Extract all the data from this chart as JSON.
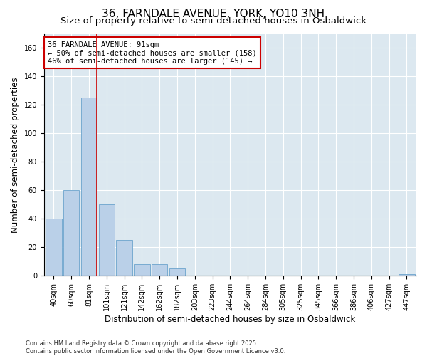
{
  "title": "36, FARNDALE AVENUE, YORK, YO10 3NH",
  "subtitle": "Size of property relative to semi-detached houses in Osbaldwick",
  "xlabel": "Distribution of semi-detached houses by size in Osbaldwick",
  "ylabel": "Number of semi-detached properties",
  "categories": [
    "40sqm",
    "60sqm",
    "81sqm",
    "101sqm",
    "121sqm",
    "142sqm",
    "162sqm",
    "182sqm",
    "203sqm",
    "223sqm",
    "244sqm",
    "264sqm",
    "284sqm",
    "305sqm",
    "325sqm",
    "345sqm",
    "366sqm",
    "386sqm",
    "406sqm",
    "427sqm",
    "447sqm"
  ],
  "values": [
    40,
    60,
    125,
    50,
    25,
    8,
    8,
    5,
    0,
    0,
    0,
    0,
    0,
    0,
    0,
    0,
    0,
    0,
    0,
    0,
    1
  ],
  "bar_color": "#bad0e8",
  "bar_edge_color": "#6ba3cc",
  "vline_color": "#cc0000",
  "annotation_text": "36 FARNDALE AVENUE: 91sqm\n← 50% of semi-detached houses are smaller (158)\n46% of semi-detached houses are larger (145) →",
  "annotation_box_color": "#ffffff",
  "annotation_box_edge_color": "#cc0000",
  "ylim": [
    0,
    170
  ],
  "yticks": [
    0,
    20,
    40,
    60,
    80,
    100,
    120,
    140,
    160
  ],
  "background_color": "#dce8f0",
  "footer_text": "Contains HM Land Registry data © Crown copyright and database right 2025.\nContains public sector information licensed under the Open Government Licence v3.0.",
  "title_fontsize": 11,
  "subtitle_fontsize": 9.5,
  "label_fontsize": 8.5,
  "tick_fontsize": 7,
  "annotation_fontsize": 7.5,
  "footer_fontsize": 6
}
